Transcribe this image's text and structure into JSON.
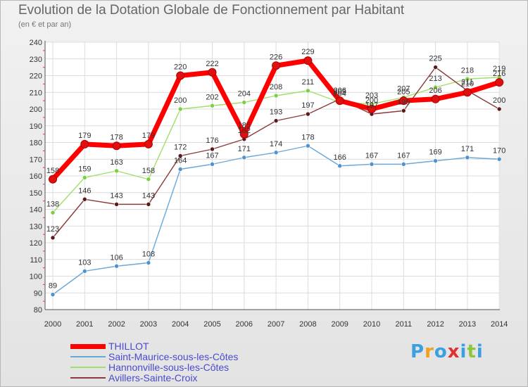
{
  "header": {
    "title": "Evolution de la Dotation Globale de Fonctionnement par Habitant",
    "subtitle": "(en € et par an)"
  },
  "brand": {
    "letters": [
      "P",
      "r",
      "o",
      "x",
      "i",
      "t",
      "i"
    ],
    "colors": [
      "#3aa0e0",
      "#f0a020",
      "#3aa0e0",
      "#e03030",
      "#3aa0e0",
      "#8cc63f",
      "#3aa0e0"
    ]
  },
  "chart_data": {
    "type": "line",
    "title": "Evolution de la Dotation Globale de Fonctionnement par Habitant",
    "subtitle": "(en € et par an)",
    "xlabel": "",
    "ylabel": "",
    "x": [
      "2000",
      "2001",
      "2002",
      "2003",
      "2004",
      "2005",
      "2006",
      "2007",
      "2008",
      "2009",
      "2010",
      "2011",
      "2012",
      "2013",
      "2014"
    ],
    "ylim": [
      80,
      240
    ],
    "yticks": [
      "80",
      "90",
      "100",
      "110",
      "120",
      "130",
      "140",
      "150",
      "160",
      "170",
      "180",
      "190",
      "200",
      "210",
      "220",
      "230",
      "240"
    ],
    "grid": true,
    "legend_position": "bottom-left",
    "series": [
      {
        "name": "Saint-Maurice-sous-les-Côtes",
        "color": "#6aa8d8",
        "marker": "#4f92cd",
        "values": [
          89,
          103,
          106,
          108,
          164,
          167,
          171,
          174,
          178,
          166,
          167,
          167,
          169,
          171,
          170
        ],
        "labels": [
          "89",
          "103",
          "106",
          "108",
          "164",
          "167",
          "171",
          "174",
          "178",
          "166",
          "167",
          "167",
          "169",
          "171",
          "170"
        ]
      },
      {
        "name": "Hannonville-sous-les-Côtes",
        "color": "#9fe06a",
        "marker": "#7ccf43",
        "values": [
          138,
          159,
          163,
          158,
          200,
          202,
          204,
          208,
          211,
          204,
          203,
          207,
          213,
          218,
          219
        ],
        "labels": [
          "138",
          "159",
          "163",
          "158",
          "200",
          "202",
          "204",
          "208",
          "211",
          "204",
          "203",
          "207",
          "213",
          "218",
          "219"
        ]
      },
      {
        "name": "Avillers-Sainte-Croix",
        "color": "#8a3a3a",
        "marker": "#5a1a1a",
        "values": [
          123,
          146,
          143,
          143,
          172,
          176,
          182,
          193,
          197,
          206,
          197,
          199,
          225,
          211,
          200
        ],
        "labels": [
          "123",
          "146",
          "143",
          "143",
          "172",
          "176",
          "182",
          "193",
          "197",
          "206",
          "197",
          "199",
          "225",
          "211",
          "200"
        ]
      },
      {
        "name": "THILLOT",
        "color": "#ff0000",
        "marker": "#e01010",
        "values": [
          158,
          179,
          178,
          179,
          220,
          222,
          185,
          226,
          229,
          205,
          200,
          205,
          206,
          210,
          216
        ],
        "labels": [
          "158",
          "179",
          "178",
          "179",
          "220",
          "222",
          "185",
          "226",
          "229",
          "205",
          "200",
          "205",
          "206",
          "210",
          "216"
        ]
      }
    ],
    "legend": [
      {
        "name": "THILLOT",
        "color": "#ff0000"
      },
      {
        "name": "Saint-Maurice-sous-les-Côtes",
        "color": "#6aa8d8"
      },
      {
        "name": "Hannonville-sous-les-Côtes",
        "color": "#9fe06a"
      },
      {
        "name": "Avillers-Sainte-Croix",
        "color": "#8a3a3a"
      }
    ]
  }
}
